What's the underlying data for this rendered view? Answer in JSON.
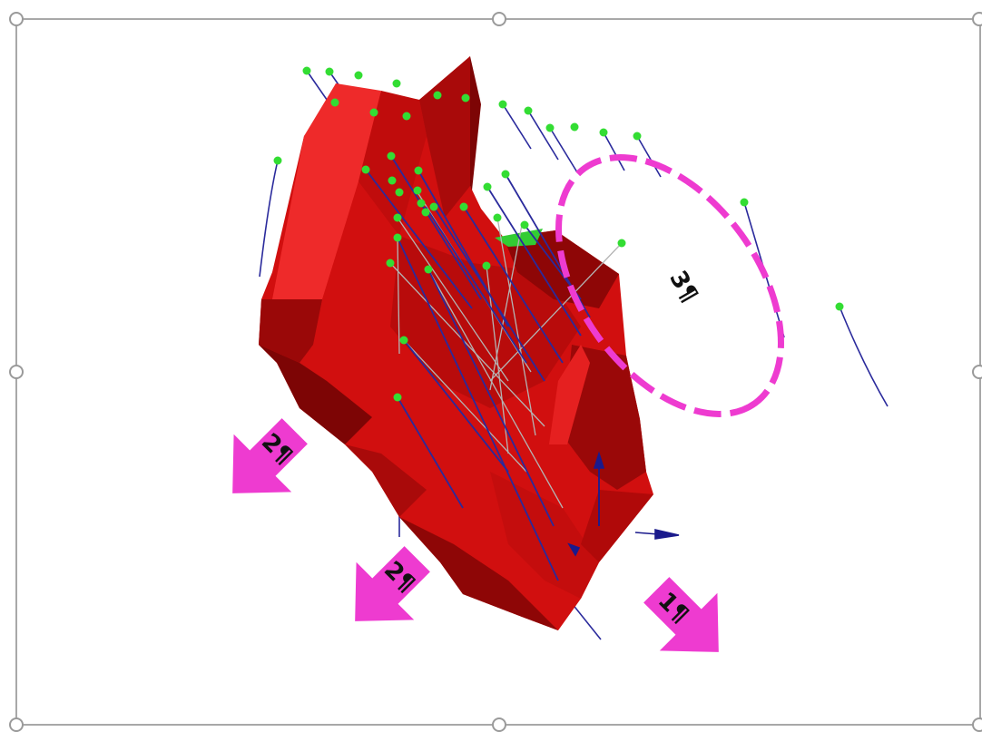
{
  "colors": {
    "ore_body": "#d10f0f",
    "ore_body_dark": "#8e0606",
    "ore_body_light": "#ee2a2a",
    "collar": "#33dd33",
    "drillhole": "#2a2a9c",
    "trace": "#b4b4b4",
    "annotation": "#ee3bd0",
    "frame": "#a8a8a8"
  },
  "annotations": {
    "arrow_1": {
      "label": "1¶"
    },
    "arrow_2a": {
      "label": "2¶"
    },
    "arrow_2b": {
      "label": "2¶"
    },
    "ellipse_3": {
      "label": "3¶"
    }
  },
  "icons": {
    "selection_handle": "circle-handle-icon",
    "axis_arrow": "triangle-arrow-icon"
  }
}
